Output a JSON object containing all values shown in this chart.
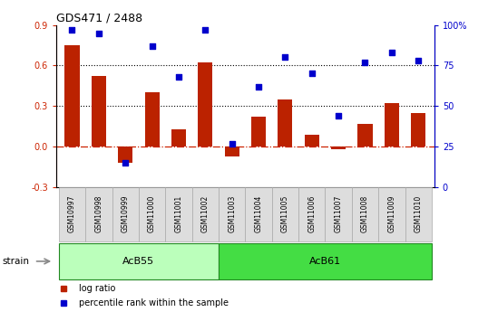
{
  "title": "GDS471 / 2488",
  "samples": [
    "GSM10997",
    "GSM10998",
    "GSM10999",
    "GSM11000",
    "GSM11001",
    "GSM11002",
    "GSM11003",
    "GSM11004",
    "GSM11005",
    "GSM11006",
    "GSM11007",
    "GSM11008",
    "GSM11009",
    "GSM11010"
  ],
  "log_ratio": [
    0.75,
    0.52,
    -0.12,
    0.4,
    0.13,
    0.62,
    -0.07,
    0.22,
    0.35,
    0.09,
    -0.02,
    0.17,
    0.32,
    0.25
  ],
  "percentile_rank": [
    97,
    95,
    15,
    87,
    68,
    97,
    27,
    62,
    80,
    70,
    44,
    77,
    83,
    78
  ],
  "ylim_left": [
    -0.3,
    0.9
  ],
  "ylim_right": [
    0,
    100
  ],
  "yticks_left": [
    -0.3,
    0.0,
    0.3,
    0.6,
    0.9
  ],
  "yticks_right": [
    0,
    25,
    50,
    75,
    100
  ],
  "hlines": [
    0.3,
    0.6
  ],
  "bar_color": "#bb2200",
  "scatter_color": "#0000cc",
  "zero_line_color": "#cc2200",
  "dotted_line_color": "#000000",
  "group1_label": "AcB55",
  "group2_label": "AcB61",
  "group1_indices": [
    0,
    1,
    2,
    3,
    4,
    5
  ],
  "group2_indices": [
    6,
    7,
    8,
    9,
    10,
    11,
    12,
    13
  ],
  "strain_label": "strain",
  "legend_log_ratio": "log ratio",
  "legend_percentile": "percentile rank within the sample",
  "group1_color": "#bbffbb",
  "group2_color": "#44dd44",
  "right_axis_color": "#0000cc",
  "left_axis_color": "#cc2200",
  "tick_label_bg": "#dddddd",
  "tick_label_edge": "#aaaaaa"
}
